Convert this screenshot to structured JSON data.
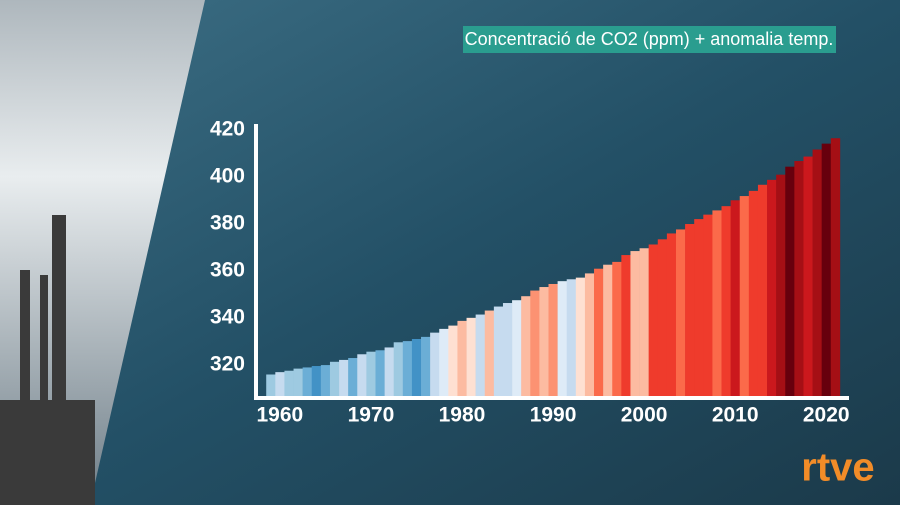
{
  "chart_data": {
    "type": "bar",
    "title": "Concentració de CO2 (ppm) + anomalia temp.",
    "x": [
      1959,
      1960,
      1961,
      1962,
      1963,
      1964,
      1965,
      1966,
      1967,
      1968,
      1969,
      1970,
      1971,
      1972,
      1973,
      1974,
      1975,
      1976,
      1977,
      1978,
      1979,
      1980,
      1981,
      1982,
      1983,
      1984,
      1985,
      1986,
      1987,
      1988,
      1989,
      1990,
      1991,
      1992,
      1993,
      1994,
      1995,
      1996,
      1997,
      1998,
      1999,
      2000,
      2001,
      2002,
      2003,
      2004,
      2005,
      2006,
      2007,
      2008,
      2009,
      2010,
      2011,
      2012,
      2013,
      2014,
      2015,
      2016,
      2017,
      2018,
      2019,
      2020,
      2021
    ],
    "values": [
      316,
      317,
      317.6,
      318.5,
      319,
      319.6,
      320,
      321.4,
      322.2,
      323,
      324.6,
      325.7,
      326.3,
      327.5,
      329.7,
      330.2,
      331.1,
      332,
      333.8,
      335.4,
      336.8,
      338.8,
      340.1,
      341.5,
      343.2,
      344.9,
      346.4,
      347.6,
      349.3,
      351.7,
      353.2,
      354.5,
      355.7,
      356.5,
      357.2,
      359,
      361,
      362.7,
      363.9,
      366.8,
      368.5,
      369.7,
      371.3,
      373.5,
      376,
      377.7,
      380,
      382.1,
      384,
      385.8,
      387.6,
      390.1,
      391.9,
      394.1,
      396.7,
      398.8,
      401,
      404.4,
      406.8,
      408.7,
      411.7,
      414.2,
      416.5
    ],
    "colors": [
      "#9ecae1",
      "#c6dbef",
      "#9ecae1",
      "#9ecae1",
      "#6baed6",
      "#4292c6",
      "#6baed6",
      "#9ecae1",
      "#c6dbef",
      "#6baed6",
      "#c6dbef",
      "#9ecae1",
      "#6baed6",
      "#c6dbef",
      "#9ecae1",
      "#6baed6",
      "#4292c6",
      "#6baed6",
      "#c6dbef",
      "#deebf7",
      "#fee0d2",
      "#fcbba1",
      "#fee0d2",
      "#c6dbef",
      "#fcbba1",
      "#c6dbef",
      "#c6dbef",
      "#deebf7",
      "#fcbba1",
      "#fc9272",
      "#fcbba1",
      "#fc9272",
      "#deebf7",
      "#c6dbef",
      "#fee0d2",
      "#fcbba1",
      "#fb6a4a",
      "#fcbba1",
      "#fb6a4a",
      "#ef3b2c",
      "#fcbba1",
      "#fcbba1",
      "#ef3b2c",
      "#ef3b2c",
      "#ef3b2c",
      "#fb6a4a",
      "#ef3b2c",
      "#ef3b2c",
      "#ef3b2c",
      "#fb6a4a",
      "#ef3b2c",
      "#cb181d",
      "#fb6a4a",
      "#ef3b2c",
      "#ef3b2c",
      "#cb181d",
      "#a50f15",
      "#67000d",
      "#a50f15",
      "#cb181d",
      "#a50f15",
      "#67000d",
      "#a50f15"
    ],
    "xlim": [
      1956.5,
      2022.5
    ],
    "xticks": [
      1960,
      1970,
      1980,
      1990,
      2000,
      2010,
      2020
    ],
    "ylim": [
      306,
      420
    ],
    "yticks": [
      320,
      340,
      360,
      380,
      400,
      420
    ]
  },
  "logo": "rtve"
}
